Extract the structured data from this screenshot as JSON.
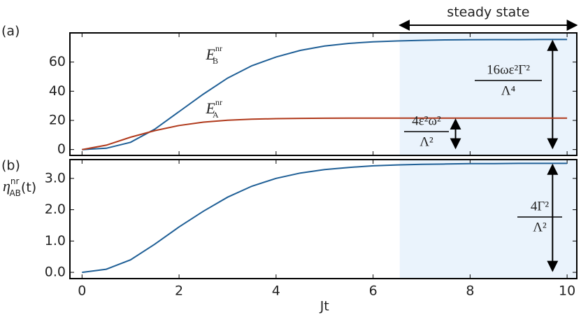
{
  "chart_data": [
    {
      "type": "line",
      "panel_label": "(a)",
      "steady_label": "steady state",
      "xlim": [
        -0.25,
        10.2
      ],
      "xticks": [
        0,
        2,
        4,
        6,
        8,
        10
      ],
      "ylim": [
        -4,
        80
      ],
      "yticks": [
        0,
        20,
        40,
        60
      ],
      "shaded_x": [
        6.55,
        10.2
      ],
      "x": [
        0,
        0.5,
        1,
        1.5,
        2,
        2.5,
        3,
        3.5,
        4,
        4.5,
        5,
        5.5,
        6,
        6.5,
        7,
        7.5,
        8,
        8.5,
        9,
        9.5,
        10
      ],
      "series": [
        {
          "name": "E",
          "sub": "B",
          "sup": "nr",
          "color": "#1f5f96",
          "values": [
            0,
            0.9,
            5,
            14,
            26,
            38,
            49,
            57.5,
            63.5,
            68,
            71,
            72.8,
            73.9,
            74.5,
            74.9,
            75.2,
            75.3,
            75.4,
            75.4,
            75.5,
            75.5
          ]
        },
        {
          "name": "E",
          "sub": "A",
          "sup": "nr",
          "color": "#b0391b",
          "values": [
            0,
            3,
            8.5,
            13,
            16.5,
            18.8,
            20.1,
            20.8,
            21.2,
            21.4,
            21.5,
            21.6,
            21.6,
            21.6,
            21.6,
            21.6,
            21.6,
            21.6,
            21.6,
            21.6,
            21.6
          ]
        }
      ],
      "annotations": [
        {
          "numerator": "16ωε²Γ²",
          "denominator": "Λ⁴"
        },
        {
          "numerator": "4ε²ω²",
          "denominator": "Λ²"
        }
      ]
    },
    {
      "type": "line",
      "panel_label": "(b)",
      "xlabel": "Jt",
      "ylabel": {
        "name": "η",
        "sub": "AB",
        "sup": "nr",
        "suffix": "(t)"
      },
      "xlim": [
        -0.25,
        10.2
      ],
      "xticks": [
        0,
        2,
        4,
        6,
        8,
        10
      ],
      "ylim": [
        -0.2,
        3.6
      ],
      "yticks": [
        {
          "value": 0,
          "label": "0.0"
        },
        {
          "value": 1,
          "label": "1.0"
        },
        {
          "value": 2,
          "label": "2.0"
        },
        {
          "value": 3,
          "label": "3.0"
        }
      ],
      "shaded_x": [
        6.55,
        10.2
      ],
      "x": [
        0,
        0.5,
        1,
        1.5,
        2,
        2.5,
        3,
        3.5,
        4,
        4.5,
        5,
        5.5,
        6,
        6.5,
        7,
        7.5,
        8,
        8.5,
        9,
        9.5,
        10
      ],
      "series": [
        {
          "color": "#1f5f96",
          "values": [
            0,
            0.1,
            0.4,
            0.9,
            1.45,
            1.95,
            2.4,
            2.75,
            3.0,
            3.17,
            3.28,
            3.35,
            3.4,
            3.43,
            3.45,
            3.46,
            3.47,
            3.47,
            3.48,
            3.48,
            3.48
          ]
        }
      ],
      "annotations": [
        {
          "numerator": "4Γ²",
          "denominator": "Λ²"
        }
      ]
    }
  ]
}
